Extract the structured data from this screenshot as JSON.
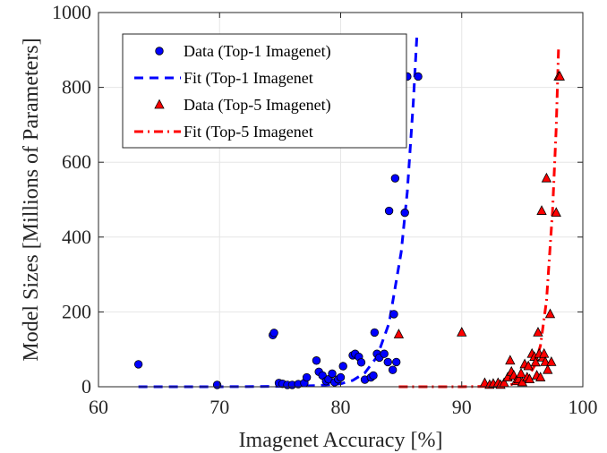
{
  "chart_data": {
    "type": "scatter",
    "xlabel": "Imagenet Accuracy [%]",
    "ylabel": "Model Sizes [Millions of Parameters]",
    "xlim": [
      60,
      100
    ],
    "ylim": [
      0,
      1000
    ],
    "xticks": [
      "60",
      "70",
      "80",
      "90",
      "100"
    ],
    "yticks": [
      "0",
      "200",
      "400",
      "600",
      "800",
      "1000"
    ],
    "grid": true,
    "legend_position": "top-left",
    "series": [
      {
        "name": "Data (Top-1 Imagenet)",
        "kind": "scatter",
        "marker": "circle",
        "color": "#0000ff",
        "x": [
          63.3,
          69.8,
          74.4,
          74.5,
          74.9,
          75.2,
          75.6,
          76.0,
          76.5,
          77.0,
          77.2,
          78.0,
          78.2,
          78.5,
          78.8,
          79.0,
          79.3,
          79.5,
          79.8,
          80.0,
          80.2,
          81.0,
          81.2,
          81.5,
          81.7,
          82.0,
          82.5,
          82.7,
          82.8,
          83.0,
          83.2,
          83.6,
          83.9,
          84.0,
          84.3,
          84.4,
          84.5,
          84.6,
          85.3,
          85.5,
          86.4
        ],
        "y": [
          60,
          5,
          138,
          144,
          10,
          8,
          5,
          5,
          7,
          10,
          25,
          70,
          40,
          30,
          15,
          20,
          35,
          12,
          20,
          25,
          55,
          84,
          88,
          80,
          65,
          19,
          25,
          30,
          145,
          88,
          78,
          88,
          66,
          470,
          45,
          194,
          557,
          66,
          465,
          829,
          829
        ]
      },
      {
        "name": "Fit (Top-1 Imagenet",
        "kind": "line",
        "dash": "dashed",
        "color": "#0000ff",
        "x": [
          63.3,
          70,
          75,
          78,
          80,
          81,
          82,
          83,
          84,
          85,
          85.5,
          86,
          86.3
        ],
        "y": [
          0,
          0,
          1,
          3,
          8,
          17,
          37,
          80,
          170,
          360,
          520,
          760,
          940
        ]
      },
      {
        "name": "Data (Top-5 Imagenet)",
        "kind": "scatter",
        "marker": "triangle",
        "color": "#ff0000",
        "x": [
          84.8,
          90.0,
          91.9,
          92.3,
          92.6,
          93.0,
          93.2,
          93.5,
          93.8,
          94.0,
          94.1,
          94.3,
          94.5,
          94.7,
          94.9,
          95.0,
          95.2,
          95.4,
          95.5,
          95.6,
          95.8,
          96.0,
          96.1,
          96.2,
          96.3,
          96.4,
          96.5,
          96.6,
          96.7,
          96.8,
          96.9,
          97.0,
          97.1,
          97.3,
          97.4,
          97.8,
          98.0,
          98.1
        ],
        "y": [
          140,
          145,
          10,
          5,
          8,
          10,
          5,
          10,
          25,
          70,
          40,
          30,
          15,
          20,
          35,
          12,
          60,
          25,
          55,
          20,
          88,
          80,
          65,
          30,
          145,
          88,
          25,
          470,
          78,
          88,
          66,
          557,
          45,
          194,
          66,
          465,
          829,
          829
        ]
      },
      {
        "name": "Fit (Top-5 Imagenet",
        "kind": "line",
        "dash": "dashdot",
        "color": "#ff0000",
        "x": [
          84.8,
          88,
          90,
          92,
          93,
          94,
          95,
          95.5,
          96,
          96.5,
          97,
          97.5,
          97.8,
          98.0
        ],
        "y": [
          0,
          0,
          0,
          1,
          2,
          5,
          15,
          28,
          55,
          110,
          230,
          470,
          690,
          910
        ]
      }
    ]
  }
}
